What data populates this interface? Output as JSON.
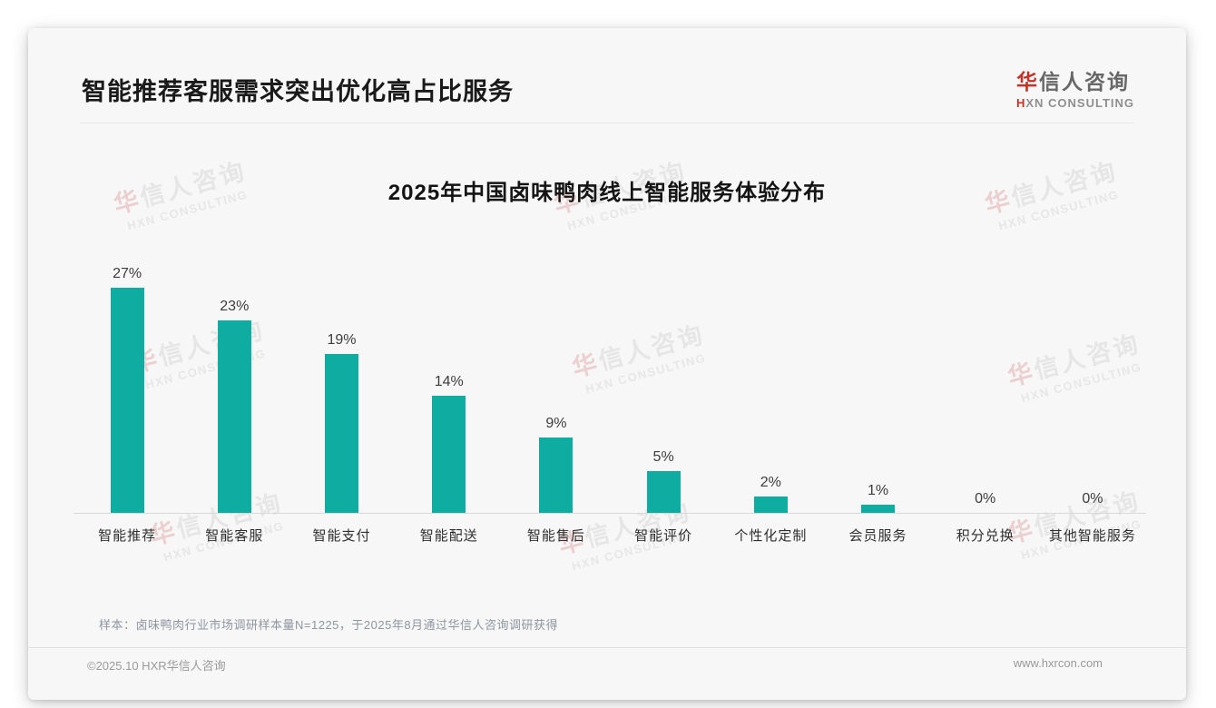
{
  "page": {
    "title": "智能推荐客服需求突出优化高占比服务",
    "logo": {
      "cn_first": "华",
      "cn_rest": "信人咨询",
      "en_first": "H",
      "en_rest": "XN CONSULTING"
    },
    "watermark": {
      "line1_first": "华",
      "line1_rest": "信人咨询",
      "line2": "HXN CONSULTING"
    },
    "note": "样本：卤味鸭肉行业市场调研样本量N=1225，于2025年8月通过华信人咨询调研获得",
    "footer": {
      "copyright": "©2025.10 HXR华信人咨询",
      "website": "www.hxrcon.com"
    }
  },
  "chart_data": {
    "type": "bar",
    "title": "2025年中国卤味鸭肉线上智能服务体验分布",
    "categories": [
      "智能推荐",
      "智能客服",
      "智能支付",
      "智能配送",
      "智能售后",
      "智能评价",
      "个性化定制",
      "会员服务",
      "积分兑换",
      "其他智能服务"
    ],
    "values": [
      27,
      23,
      19,
      14,
      9,
      5,
      2,
      1,
      0,
      0
    ],
    "value_labels": [
      "27%",
      "23%",
      "19%",
      "14%",
      "9%",
      "5%",
      "2%",
      "1%",
      "0%",
      "0%"
    ],
    "unit": "%",
    "bar_color": "#0EACA1",
    "ylim": [
      0,
      30
    ],
    "xlabel": "",
    "ylabel": "",
    "grid": false,
    "legend": false
  }
}
